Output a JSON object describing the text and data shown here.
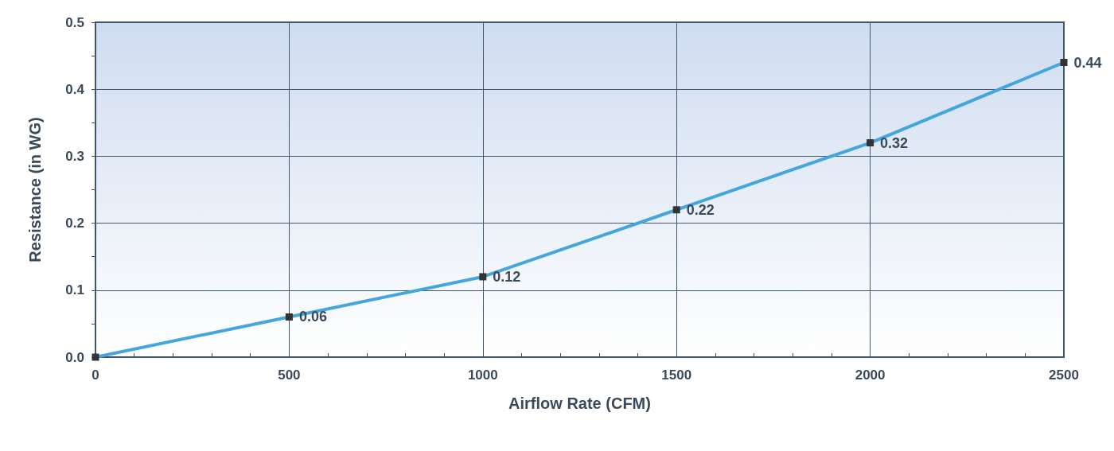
{
  "chart_data": {
    "type": "line",
    "xlabel": "Airflow Rate (CFM)",
    "ylabel": "Resistance (in WG)",
    "x": [
      0,
      500,
      1000,
      1500,
      2000,
      2500
    ],
    "series": [
      {
        "color": "#45a6de",
        "values": [
          0,
          0.06,
          0.12,
          0.22,
          0.32,
          0.44
        ],
        "value_labels": [
          null,
          "0.06",
          "0.12",
          "0.22",
          "0.32",
          "0.44"
        ]
      }
    ],
    "xlim": [
      0,
      2500
    ],
    "xticks": [
      0,
      {
        "value": 100,
        "label": null
      },
      {
        "value": 200,
        "label": null
      },
      {
        "value": 300,
        "label": null
      },
      {
        "value": 400,
        "label": null
      },
      500,
      {
        "value": 600,
        "label": null
      },
      {
        "value": 700,
        "label": null
      },
      {
        "value": 800,
        "label": null
      },
      {
        "value": 900,
        "label": null
      },
      1000,
      {
        "value": 1100,
        "label": null
      },
      {
        "value": 1200,
        "label": null
      },
      {
        "value": 1300,
        "label": null
      },
      {
        "value": 1400,
        "label": null
      },
      1500,
      {
        "value": 1600,
        "label": null
      },
      {
        "value": 1700,
        "label": null
      },
      {
        "value": 1800,
        "label": null
      },
      {
        "value": 1900,
        "label": null
      },
      2000,
      {
        "value": 2100,
        "label": null
      },
      {
        "value": 2200,
        "label": null
      },
      {
        "value": 2300,
        "label": null
      },
      {
        "value": 2400,
        "label": null
      },
      2500
    ],
    "ylim": [
      0,
      0.5
    ],
    "yticks": [
      {
        "value": 0,
        "label": "0.0"
      },
      {
        "value": 0.05,
        "label": null
      },
      0.1,
      {
        "value": 0.15,
        "label": null
      },
      0.2,
      {
        "value": 0.25,
        "label": null
      },
      0.3,
      {
        "value": 0.35,
        "label": null
      },
      0.4,
      {
        "value": 0.45,
        "label": null
      },
      0.5
    ],
    "grid": true,
    "marker": "square",
    "line_style": "solid"
  }
}
